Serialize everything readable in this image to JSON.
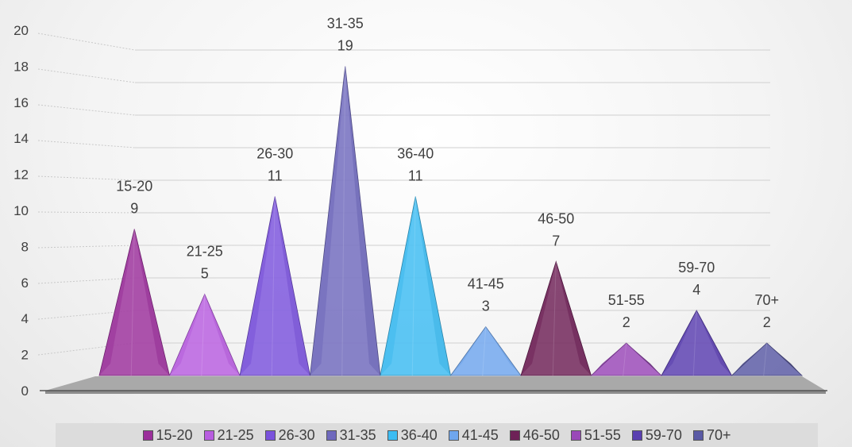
{
  "chart_data": {
    "type": "bar",
    "shape": "3d-pyramid",
    "categories": [
      "15-20",
      "21-25",
      "26-30",
      "31-35",
      "36-40",
      "41-45",
      "46-50",
      "51-55",
      "59-70",
      "70+"
    ],
    "values": [
      9,
      5,
      11,
      19,
      11,
      3,
      7,
      2,
      4,
      2
    ],
    "ylim": [
      0,
      20
    ],
    "yticks": [
      "0",
      "2",
      "4",
      "6",
      "8",
      "10",
      "12",
      "14",
      "16",
      "18",
      "20"
    ],
    "grid": true,
    "legend_position": "bottom",
    "colors": [
      "#9b2f9b",
      "#b85de0",
      "#7a52dc",
      "#6f69bd",
      "#3cbcf2",
      "#6fa6ee",
      "#6e2157",
      "#9a48b8",
      "#5a3fb0",
      "#5a5aa5"
    ]
  }
}
